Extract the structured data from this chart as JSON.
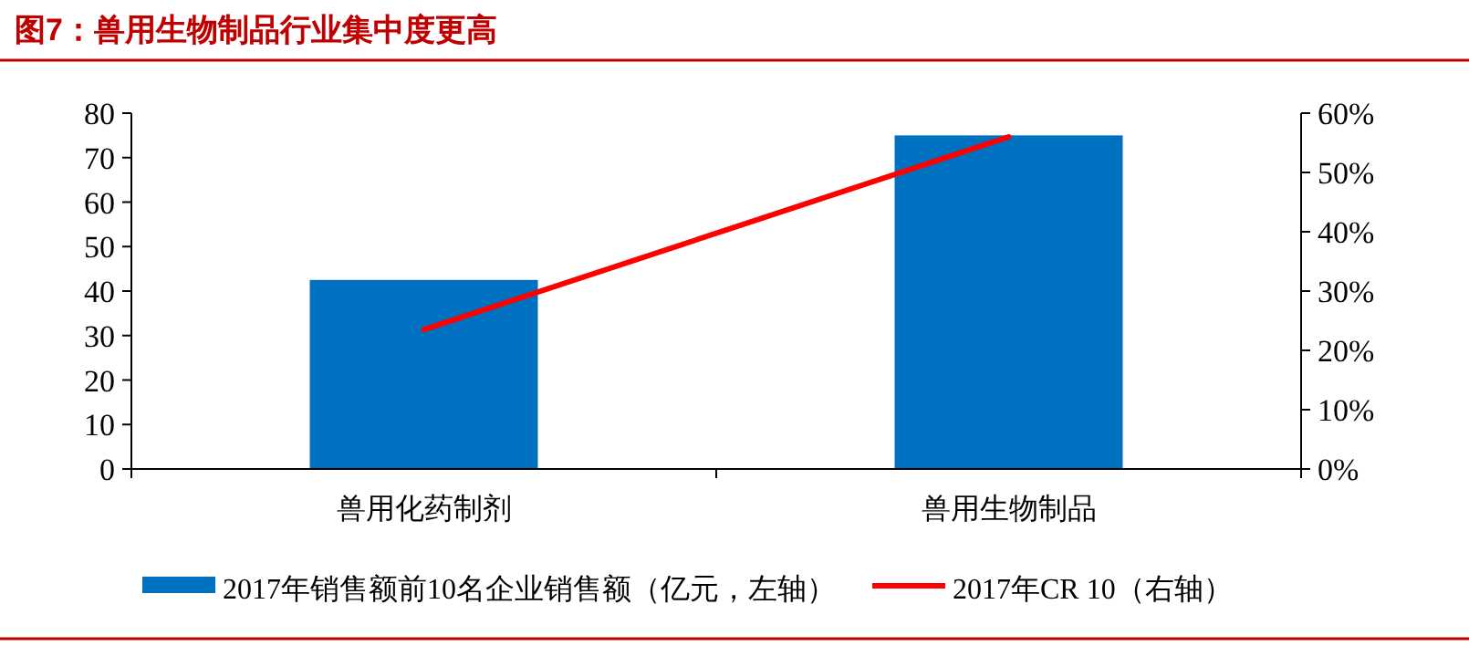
{
  "chart_data": {
    "type": "bar",
    "title": "图7：兽用生物制品行业集中度更高",
    "categories": [
      "兽用化药制剂",
      "兽用生物制品"
    ],
    "series": [
      {
        "name": "2017年销售额前10名企业销售额（亿元，左轴）",
        "color": "#0070c0",
        "values": [
          42.5,
          75
        ]
      },
      {
        "name": "2017年CR 10（右轴）",
        "type": "line",
        "axis": "y2",
        "color": "#ff0000",
        "values": [
          23.5,
          56
        ]
      }
    ],
    "ylim": [
      0,
      80
    ],
    "yticks": [
      0,
      10,
      20,
      30,
      40,
      50,
      60,
      70,
      80
    ],
    "y2lim": [
      0,
      60
    ],
    "y2ticks": [
      {
        "value": 0,
        "label": "0%"
      },
      {
        "value": 10,
        "label": "10%"
      },
      {
        "value": 20,
        "label": "20%"
      },
      {
        "value": 30,
        "label": "30%"
      },
      {
        "value": 40,
        "label": "40%"
      },
      {
        "value": 50,
        "label": "50%"
      },
      {
        "value": 60,
        "label": "60%"
      }
    ],
    "legend": "bottom",
    "grid": false
  }
}
